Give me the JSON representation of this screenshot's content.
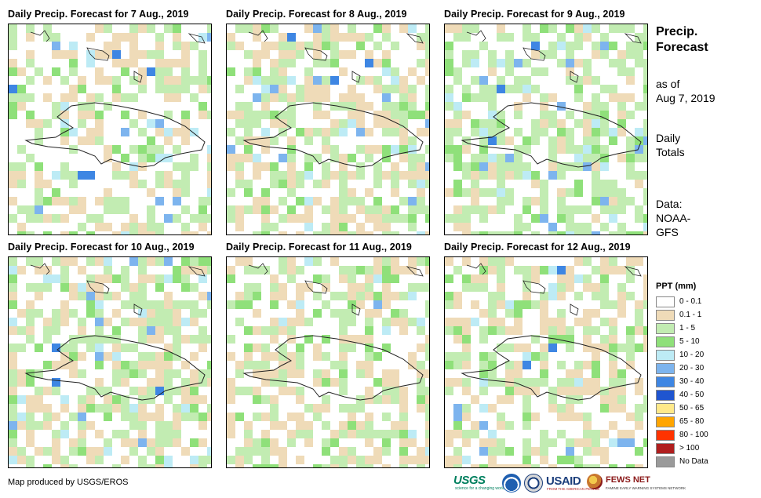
{
  "panels": [
    {
      "title": "Daily Precip. Forecast for 7 Aug., 2019"
    },
    {
      "title": "Daily Precip. Forecast for 8 Aug., 2019"
    },
    {
      "title": "Daily Precip. Forecast for 9 Aug., 2019"
    },
    {
      "title": "Daily Precip. Forecast for 10 Aug., 2019"
    },
    {
      "title": "Daily Precip. Forecast for 11 Aug., 2019"
    },
    {
      "title": "Daily Precip. Forecast for 12 Aug., 2019"
    }
  ],
  "sidebar": {
    "title_line1": "Precip.",
    "title_line2": "Forecast",
    "as_of_line1": "as of",
    "as_of_line2": "Aug 7, 2019",
    "totals_line1": "Daily",
    "totals_line2": "Totals",
    "source_line1": "Data:",
    "source_line2": "NOAA-",
    "source_line3": "GFS"
  },
  "legend": {
    "title": "PPT (mm)",
    "items": [
      {
        "label": "0 - 0.1",
        "color": "#ffffff"
      },
      {
        "label": "0.1 - 1",
        "color": "#efdbb8"
      },
      {
        "label": "1 - 5",
        "color": "#c2ecb2"
      },
      {
        "label": "5 - 10",
        "color": "#8fe07a"
      },
      {
        "label": "10 - 20",
        "color": "#bdebf5"
      },
      {
        "label": "20 - 30",
        "color": "#7db4ee"
      },
      {
        "label": "30 - 40",
        "color": "#3e86e3"
      },
      {
        "label": "40 - 50",
        "color": "#1f55d0"
      },
      {
        "label": "50 - 65",
        "color": "#ffe98a"
      },
      {
        "label": "65 - 80",
        "color": "#ffa500"
      },
      {
        "label": "80 - 100",
        "color": "#ff3300"
      },
      {
        "label": "> 100",
        "color": "#b01e1e"
      },
      {
        "label": "No Data",
        "color": "#9a9a9a"
      }
    ]
  },
  "credit": "Map produced by USGS/EROS",
  "logos": {
    "usgs": "USGS",
    "usgs_tagline": "science for a changing world",
    "usaid": "USAID",
    "usaid_tagline": "FROM THE AMERICAN PEOPLE",
    "fews": "FEWS NET",
    "fews_tagline": "FAMINE EARLY WARNING SYSTEMS NETWORK"
  }
}
